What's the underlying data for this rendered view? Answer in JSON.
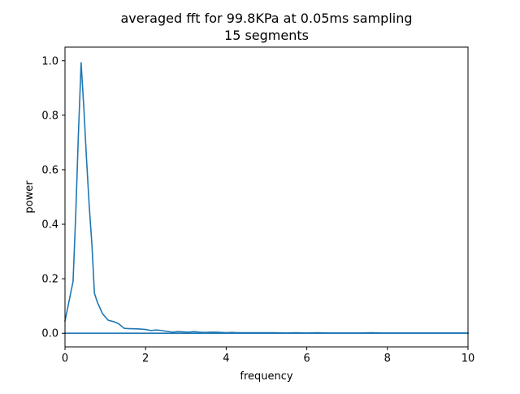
{
  "chart_data": {
    "type": "line",
    "title": "averaged fft for 99.8KPa at 0.05ms sampling",
    "subtitle": "15 segments",
    "xlabel": "frequency",
    "ylabel": "power",
    "xlim": [
      0,
      10
    ],
    "ylim": [
      -0.05,
      1.05
    ],
    "x_ticks": [
      0,
      2,
      4,
      6,
      8,
      10
    ],
    "y_ticks": [
      0.0,
      0.2,
      0.4,
      0.6,
      0.8,
      1.0
    ],
    "x_tick_labels": [
      "0",
      "2",
      "4",
      "6",
      "8",
      "10"
    ],
    "y_tick_labels": [
      "0.0",
      "0.2",
      "0.4",
      "0.6",
      "0.8",
      "1.0"
    ],
    "grid": false,
    "line_color": "#1f77b4",
    "series": [
      {
        "x": [
          0,
          0.2,
          0.27,
          0.33,
          0.4,
          0.47,
          0.53,
          0.6,
          0.67,
          0.73,
          0.8,
          0.93,
          1.07,
          1.2,
          1.33,
          1.47,
          1.6,
          1.8,
          2.0,
          2.13,
          2.27,
          2.4,
          2.53,
          2.67,
          2.8,
          2.93,
          3.07,
          3.2,
          3.33,
          3.47,
          3.6,
          3.73,
          3.87,
          4.0,
          4.13,
          4.27,
          4.4,
          4.67,
          4.93,
          5.2,
          5.47,
          5.73,
          6.0,
          6.27,
          6.53,
          6.8,
          7.07,
          7.33,
          7.6,
          7.87,
          8.13,
          8.4,
          8.67,
          8.93,
          9.2,
          9.47,
          9.73,
          10.0
        ],
        "values": [
          0.045,
          0.19,
          0.45,
          0.72,
          0.993,
          0.82,
          0.65,
          0.47,
          0.32,
          0.147,
          0.115,
          0.072,
          0.048,
          0.043,
          0.035,
          0.018,
          0.017,
          0.016,
          0.014,
          0.01,
          0.012,
          0.01,
          0.007,
          0.004,
          0.006,
          0.005,
          0.004,
          0.006,
          0.004,
          0.003,
          0.004,
          0.004,
          0.003,
          0.002,
          0.003,
          0.002,
          0.002,
          0.002,
          0.002,
          0.002,
          0.001,
          0.002,
          0.001,
          0.002,
          0.001,
          0.001,
          0.001,
          0.001,
          0.002,
          0.001,
          0.001,
          0.001,
          0.001,
          0.001,
          0.001,
          0.001,
          0.001,
          0.001
        ]
      },
      {
        "x": [
          0,
          10
        ],
        "values": [
          0.0,
          0.0
        ]
      }
    ]
  }
}
